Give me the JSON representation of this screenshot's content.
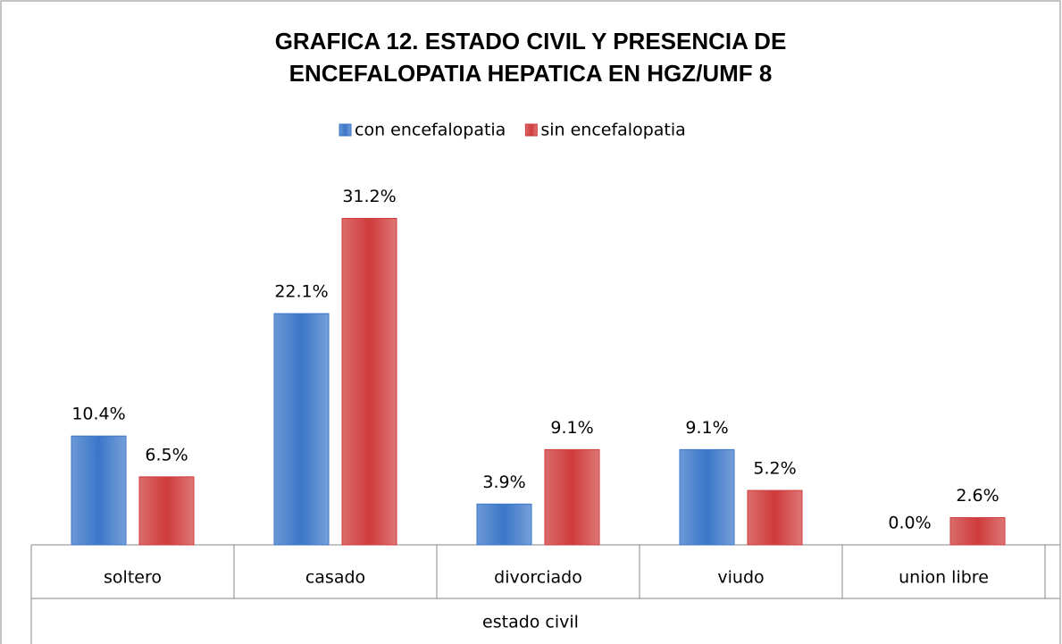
{
  "chart_data": {
    "type": "bar",
    "title": "GRAFICA 12. ESTADO CIVIL Y PRESENCIA DE ENCEFALOPATIA HEPATICA EN HGZ/UMF 8",
    "x_label": "estado civil",
    "categories": [
      "soltero",
      "casado",
      "divorciado",
      "viudo",
      "union libre"
    ],
    "series": [
      {
        "name": "con encefalopatia",
        "color": "#3b76c8",
        "values": [
          10.4,
          22.1,
          3.9,
          9.1,
          0.0
        ],
        "value_labels": [
          "10.4%",
          "22.1%",
          "3.9%",
          "9.1%",
          "0.0%"
        ]
      },
      {
        "name": "sin encefalopatia",
        "color": "#cf3b3b",
        "values": [
          6.5,
          31.2,
          9.1,
          5.2,
          2.6
        ],
        "value_labels": [
          "6.5%",
          "31.2%",
          "9.1%",
          "5.2%",
          "2.6%"
        ]
      }
    ],
    "ylim": [
      0,
      35
    ],
    "legend": "top"
  }
}
